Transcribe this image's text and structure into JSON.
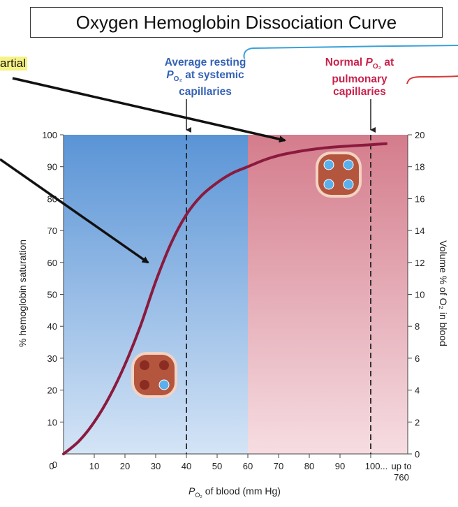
{
  "title": "Oxygen Hemoglobin Dissociation Curve",
  "note_partial": "artial",
  "annotation_left": {
    "line1": "Average resting",
    "line2_p": "P",
    "line2_sub": "O₂",
    "line2_rest": " at systemic",
    "line3": "capillaries"
  },
  "annotation_right": {
    "line1_pre": "Normal ",
    "line1_p": "P",
    "line1_sub": "O₂",
    "line1_rest": " at",
    "line2": "pulmonary",
    "line3": "capillaries"
  },
  "colors": {
    "curve": "#8a1a3e",
    "left_region": "#6aa0dc",
    "right_region": "#d9818f",
    "annotation_blue": "#3562b5",
    "annotation_red": "#c8224d"
  },
  "chart_data": {
    "type": "line",
    "title": "Oxygen Hemoglobin Dissociation Curve",
    "xlabel_p": "P",
    "xlabel_sub": "O₂",
    "xlabel_rest": " of blood (mm Hg)",
    "ylabel_left": "% hemoglobin saturation",
    "ylabel_right": "Volume % of O₂ in blood",
    "xlim": [
      0,
      110
    ],
    "ylim_left": [
      0,
      100
    ],
    "ylim_right": [
      0,
      20
    ],
    "x_ticks": [
      "0",
      "10",
      "20",
      "30",
      "40",
      "50",
      "60",
      "70",
      "80",
      "90",
      "100...",
      "up to 760"
    ],
    "y_ticks_left": [
      "10",
      "20",
      "30",
      "40",
      "50",
      "60",
      "70",
      "80",
      "90",
      "100"
    ],
    "y_ticks_right": [
      "0",
      "2",
      "4",
      "6",
      "8",
      "10",
      "12",
      "14",
      "16",
      "18",
      "20"
    ],
    "vertical_lines": [
      40,
      100
    ],
    "regions": [
      {
        "from": 0,
        "to": 60,
        "color": "#6aa0dc"
      },
      {
        "from": 60,
        "to": 110,
        "color": "#d9818f"
      }
    ],
    "series": [
      {
        "x": [
          0,
          5,
          10,
          15,
          20,
          25,
          30,
          35,
          40,
          45,
          50,
          55,
          60,
          65,
          70,
          75,
          80,
          85,
          90,
          95,
          100,
          105
        ],
        "y": [
          0,
          4,
          10,
          18,
          28,
          40,
          54,
          66,
          75,
          81,
          85,
          88,
          90,
          92,
          93.5,
          94.5,
          95.3,
          95.9,
          96.3,
          96.6,
          96.9,
          97.2
        ]
      }
    ]
  }
}
